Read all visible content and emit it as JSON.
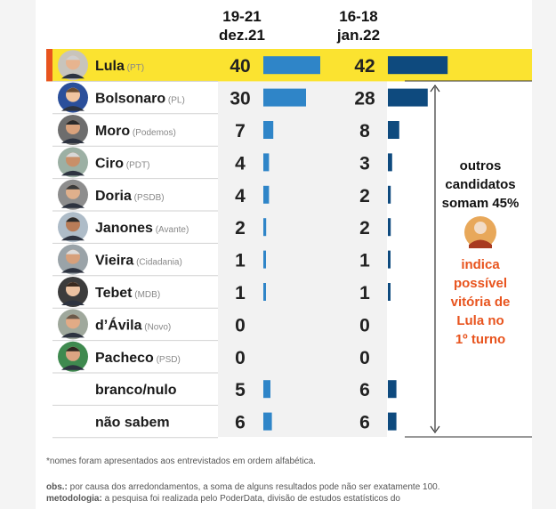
{
  "chart_data": {
    "type": "bar",
    "periods": [
      {
        "line1": "19-21",
        "line2": "dez.21"
      },
      {
        "line1": "16-18",
        "line2": "jan.22"
      }
    ],
    "categories": [
      {
        "name": "Lula",
        "party": "(PT)",
        "photo": true,
        "highlight": true
      },
      {
        "name": "Bolsonaro",
        "party": "(PL)",
        "photo": true
      },
      {
        "name": "Moro",
        "party": "(Podemos)",
        "photo": true
      },
      {
        "name": "Ciro",
        "party": "(PDT)",
        "photo": true
      },
      {
        "name": "Doria",
        "party": "(PSDB)",
        "photo": true
      },
      {
        "name": "Janones",
        "party": "(Avante)",
        "photo": true
      },
      {
        "name": "Vieira",
        "party": "(Cidadania)",
        "photo": true
      },
      {
        "name": "Tebet",
        "party": "(MDB)",
        "photo": true
      },
      {
        "name": "d’Ávila",
        "party": "(Novo)",
        "photo": true
      },
      {
        "name": "Pacheco",
        "party": "(PSD)",
        "photo": true
      },
      {
        "name": "branco/nulo",
        "party": "",
        "photo": false
      },
      {
        "name": "não sabem",
        "party": "",
        "photo": false
      }
    ],
    "series": [
      {
        "period": "19-21 dez.21",
        "color": "#2f85c8",
        "values": [
          40,
          30,
          7,
          4,
          4,
          2,
          1,
          1,
          0,
          0,
          5,
          6
        ]
      },
      {
        "period": "16-18 jan.22",
        "color": "#0e4a7e",
        "values": [
          42,
          28,
          8,
          3,
          2,
          2,
          1,
          1,
          0,
          0,
          6,
          6
        ]
      }
    ],
    "colors": {
      "highlight_row": "#fbe330",
      "accent_marker": "#e8541e",
      "note_highlight": "#e8541e"
    }
  },
  "side_note": {
    "lines": [
      "outros",
      "candidatos",
      "somam 45%"
    ],
    "highlight": [
      "indica",
      "possível",
      "vitória de",
      "Lula no",
      "1º turno"
    ]
  },
  "footnotes": {
    "alphabetical": "*nomes foram apresentados aos entrevistados em ordem alfabética.",
    "obs_label": "obs.:",
    "obs_text": "por causa dos arredondamentos, a soma de alguns resultados pode não ser exatamente 100.",
    "methodology_label": "metodologia:",
    "methodology_text": "a pesquisa foi realizada pelo PoderData, divisão de estudos estatísticos do"
  }
}
